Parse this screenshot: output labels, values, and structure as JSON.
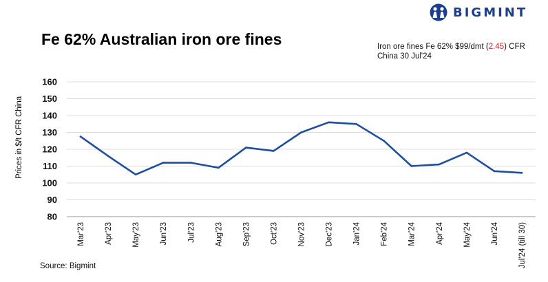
{
  "brand": {
    "name": "BIGMINT",
    "icon": "bigmint-people-icon",
    "color": "#1b3f8f"
  },
  "title": "Fe 62% Australian iron ore fines",
  "annotation": {
    "prefix": "Iron ore fines Fe 62% $99/dmt (",
    "change": "2.45",
    "suffix": ") CFR China 30 Jul'24",
    "change_color": "#d2232a"
  },
  "source": "Source: Bigmint",
  "chart_data": {
    "type": "line",
    "title": "Fe 62% Australian iron ore fines",
    "xlabel": "",
    "ylabel": "Prices in $/t CFR China",
    "ylim": [
      80,
      160
    ],
    "yticks": [
      80,
      90,
      100,
      110,
      120,
      130,
      140,
      150,
      160
    ],
    "grid": true,
    "categories": [
      "Mar'23",
      "Apr'23",
      "May'23",
      "Jun'23",
      "Jul'23",
      "Aug'23",
      "Sep'23",
      "Oct'23",
      "Nov'23",
      "Dec'23",
      "Jan'24",
      "Feb'24",
      "Mar'24",
      "Apr'24",
      "May'24",
      "Jun'24",
      "Jul'24 (till 30)"
    ],
    "series": [
      {
        "name": "Fe 62% Australian iron ore fines",
        "color": "#1f4e9c",
        "values": [
          127.5,
          116,
          105,
          112,
          112,
          109,
          121,
          119,
          130,
          136,
          135,
          125,
          110,
          111,
          118,
          107,
          106
        ]
      }
    ]
  }
}
